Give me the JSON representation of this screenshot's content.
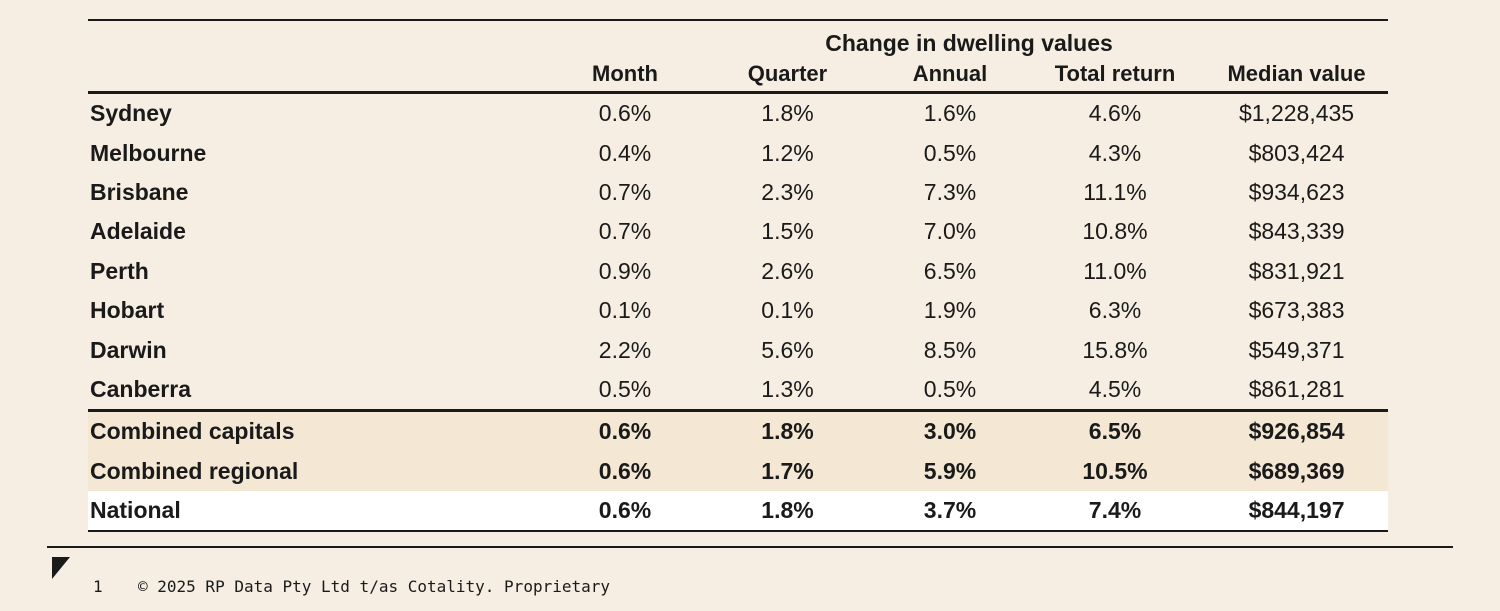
{
  "chart_data": {
    "type": "table",
    "group_header": "Change in dwelling values",
    "columns": [
      "",
      "Month",
      "Quarter",
      "Annual",
      "Total return",
      "Median value"
    ],
    "rows": [
      {
        "region": "Sydney",
        "month": "0.6%",
        "quarter": "1.8%",
        "annual": "1.6%",
        "total_return": "4.6%",
        "median_value": "$1,228,435"
      },
      {
        "region": "Melbourne",
        "month": "0.4%",
        "quarter": "1.2%",
        "annual": "0.5%",
        "total_return": "4.3%",
        "median_value": "$803,424"
      },
      {
        "region": "Brisbane",
        "month": "0.7%",
        "quarter": "2.3%",
        "annual": "7.3%",
        "total_return": "11.1%",
        "median_value": "$934,623"
      },
      {
        "region": "Adelaide",
        "month": "0.7%",
        "quarter": "1.5%",
        "annual": "7.0%",
        "total_return": "10.8%",
        "median_value": "$843,339"
      },
      {
        "region": "Perth",
        "month": "0.9%",
        "quarter": "2.6%",
        "annual": "6.5%",
        "total_return": "11.0%",
        "median_value": "$831,921"
      },
      {
        "region": "Hobart",
        "month": "0.1%",
        "quarter": "0.1%",
        "annual": "1.9%",
        "total_return": "6.3%",
        "median_value": "$673,383"
      },
      {
        "region": "Darwin",
        "month": "2.2%",
        "quarter": "5.6%",
        "annual": "8.5%",
        "total_return": "15.8%",
        "median_value": "$549,371"
      },
      {
        "region": "Canberra",
        "month": "0.5%",
        "quarter": "1.3%",
        "annual": "0.5%",
        "total_return": "4.5%",
        "median_value": "$861,281"
      }
    ],
    "summary_rows": [
      {
        "region": "Combined capitals",
        "month": "0.6%",
        "quarter": "1.8%",
        "annual": "3.0%",
        "total_return": "6.5%",
        "median_value": "$926,854"
      },
      {
        "region": "Combined regional",
        "month": "0.6%",
        "quarter": "1.7%",
        "annual": "5.9%",
        "total_return": "10.5%",
        "median_value": "$689,369"
      }
    ],
    "national_row": {
      "region": "National",
      "month": "0.6%",
      "quarter": "1.8%",
      "annual": "3.7%",
      "total_return": "7.4%",
      "median_value": "$844,197"
    }
  },
  "footer": {
    "page_number": "1",
    "copyright": "© 2025 RP Data Pty Ltd t/as Cotality. Proprietary"
  },
  "colors": {
    "background": "#f6eee2",
    "summary_row": "#f4e7d4",
    "national_row": "#ffffff",
    "text": "#1a1a1a"
  }
}
